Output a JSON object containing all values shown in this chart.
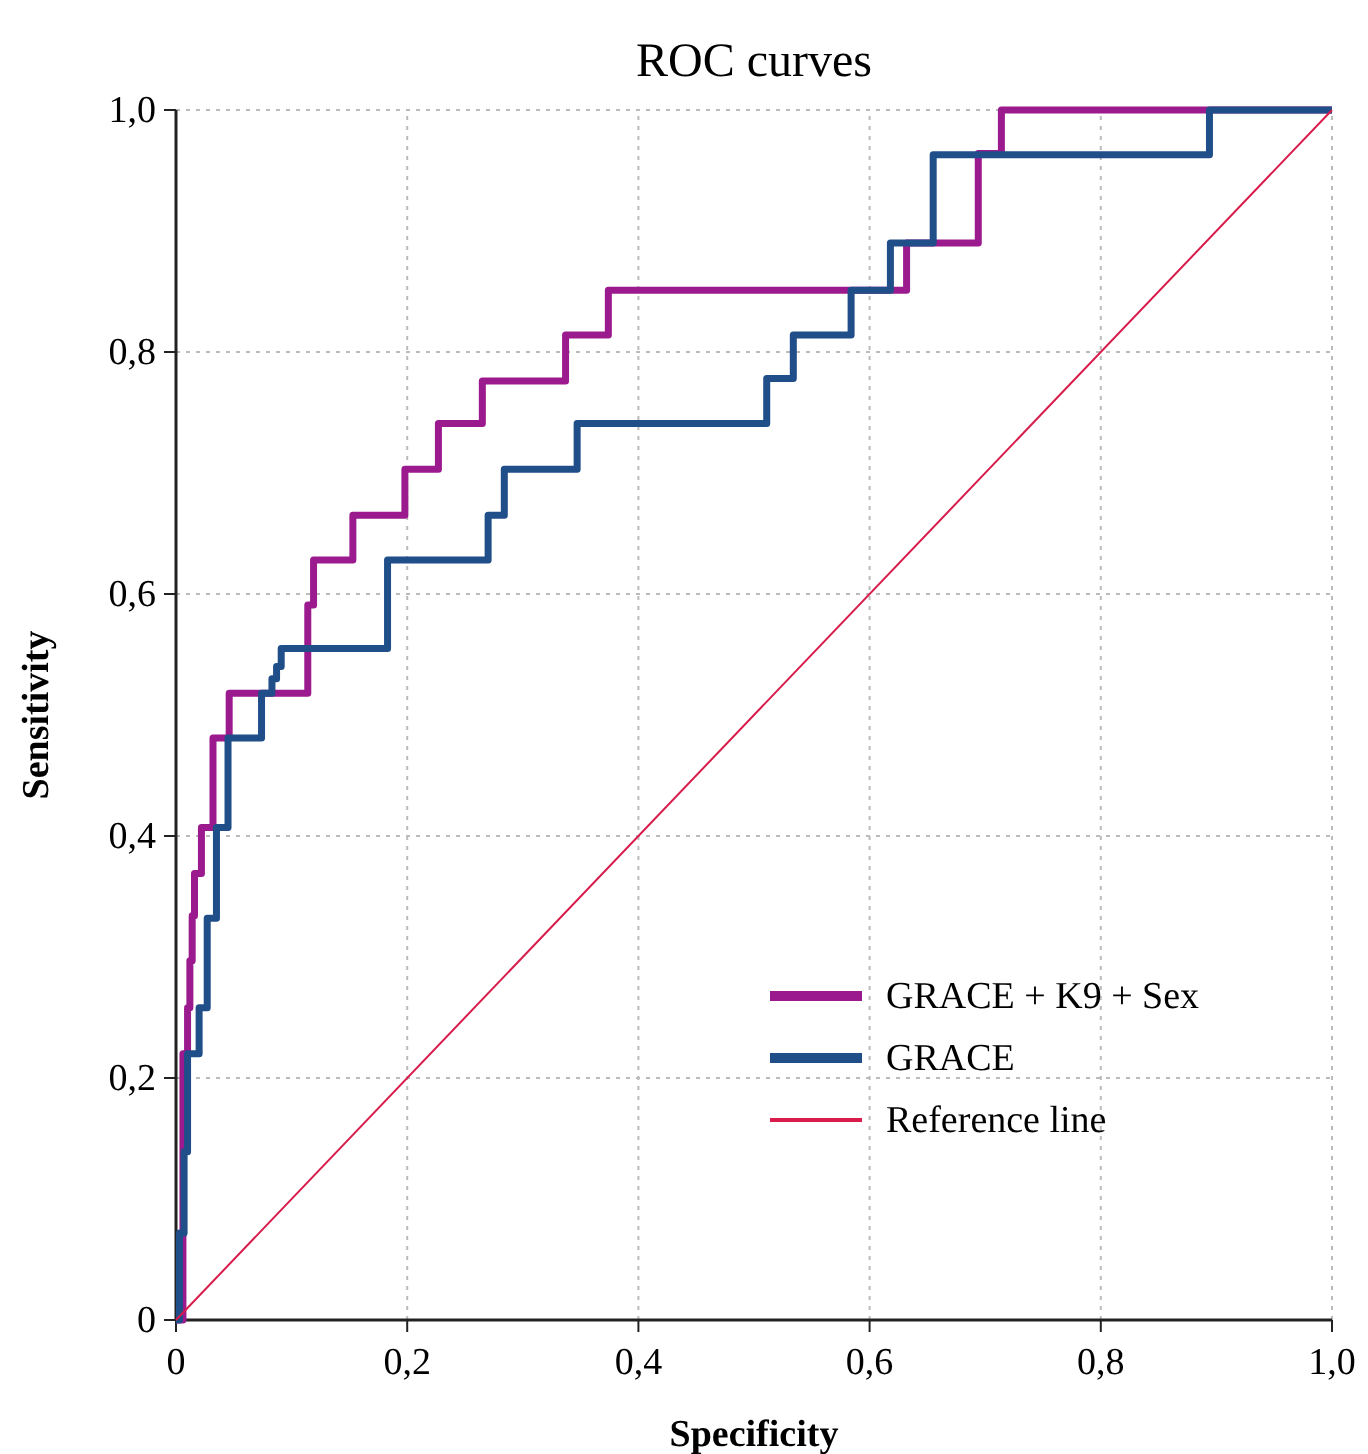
{
  "chart_data": {
    "type": "step",
    "title": "ROC curves",
    "xlabel": "Specificity",
    "ylabel": "Sensitivity",
    "xlim": [
      0,
      1
    ],
    "ylim": [
      0,
      1
    ],
    "xticks": [
      0,
      {
        "value": 0.2,
        "label": "0,2"
      },
      {
        "value": 0.4,
        "label": "0,4"
      },
      {
        "value": 0.6,
        "label": "0,6"
      },
      {
        "value": 0.8,
        "label": "0,8"
      },
      {
        "value": 1,
        "label": "1,0"
      }
    ],
    "yticks": [
      0,
      {
        "value": 0.2,
        "label": "0,2"
      },
      {
        "value": 0.4,
        "label": "0,4"
      },
      {
        "value": 0.6,
        "label": "0,6"
      },
      {
        "value": 0.8,
        "label": "0,8"
      },
      {
        "value": 1,
        "label": "1,0"
      }
    ],
    "grid": true,
    "legend": "bottom right",
    "marker": "none",
    "series": [
      {
        "name": "GRACE + K9 + Sex",
        "color": "#9b1b8e",
        "x": [
          0,
          0.006,
          0.006,
          0.01,
          0.01,
          0.012,
          0.012,
          0.014,
          0.014,
          0.016,
          0.016,
          0.022,
          0.022,
          0.032,
          0.032,
          0.046,
          0.046,
          0.114,
          0.114,
          0.119,
          0.119,
          0.153,
          0.153,
          0.198,
          0.198,
          0.227,
          0.227,
          0.265,
          0.265,
          0.337,
          0.337,
          0.374,
          0.374,
          0.632,
          0.632,
          0.694,
          0.694,
          0.714,
          0.714,
          1
        ],
        "values": [
          0,
          0,
          0.22,
          0.22,
          0.258,
          0.258,
          0.297,
          0.297,
          0.334,
          0.334,
          0.369,
          0.369,
          0.407,
          0.407,
          0.481,
          0.481,
          0.518,
          0.518,
          0.591,
          0.591,
          0.628,
          0.628,
          0.665,
          0.665,
          0.703,
          0.703,
          0.741,
          0.741,
          0.776,
          0.776,
          0.814,
          0.814,
          0.851,
          0.851,
          0.89,
          0.89,
          0.964,
          0.964,
          1,
          1
        ]
      },
      {
        "name": "GRACE",
        "color": "#1f4e89",
        "x": [
          0,
          0.003,
          0.003,
          0.007,
          0.007,
          0.01,
          0.01,
          0.02,
          0.02,
          0.027,
          0.027,
          0.035,
          0.035,
          0.045,
          0.045,
          0.074,
          0.074,
          0.083,
          0.083,
          0.087,
          0.087,
          0.091,
          0.091,
          0.183,
          0.183,
          0.27,
          0.27,
          0.284,
          0.284,
          0.347,
          0.347,
          0.511,
          0.511,
          0.534,
          0.534,
          0.584,
          0.584,
          0.618,
          0.618,
          0.655,
          0.655,
          0.894,
          0.894,
          1
        ],
        "values": [
          0,
          0,
          0.072,
          0.072,
          0.139,
          0.139,
          0.22,
          0.22,
          0.258,
          0.258,
          0.332,
          0.332,
          0.407,
          0.407,
          0.481,
          0.481,
          0.518,
          0.518,
          0.53,
          0.53,
          0.54,
          0.54,
          0.555,
          0.555,
          0.628,
          0.628,
          0.665,
          0.665,
          0.703,
          0.703,
          0.741,
          0.741,
          0.778,
          0.778,
          0.814,
          0.814,
          0.851,
          0.851,
          0.89,
          0.89,
          0.963,
          0.963,
          1,
          1
        ]
      },
      {
        "name": "Reference line",
        "color": "#d81b4a",
        "type": "line",
        "x": [
          0,
          1
        ],
        "values": [
          0,
          1
        ]
      }
    ]
  }
}
